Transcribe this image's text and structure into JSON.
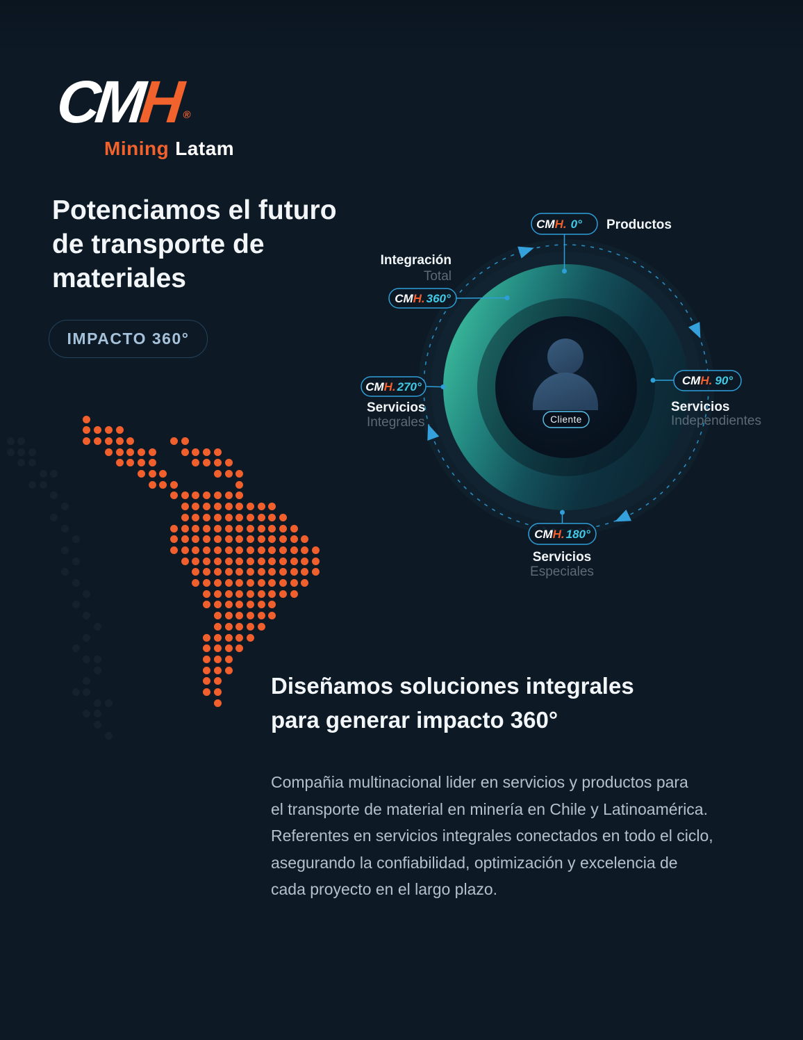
{
  "page": {
    "background": "#0d1925",
    "accent_orange": "#f15f2d",
    "accent_blue": "#2e9fd9",
    "accent_cyan": "#41c9e6",
    "accent_teal": "#2fae92"
  },
  "logo": {
    "wordmark_cm": "CM",
    "wordmark_h": "H",
    "registered": "®",
    "tagline_mining": "Mining",
    "tagline_latam": "Latam"
  },
  "hero": {
    "title": "Potenciamos el futuro\nde transporte de\nmateriales",
    "badge_label": "IMPACTO 360°"
  },
  "diagram": {
    "center": {
      "label": "Cliente"
    },
    "nodes": [
      {
        "brand_cm": "CM",
        "brand_h": "H.",
        "degree": "0°",
        "label": "Productos",
        "sublabel": ""
      },
      {
        "brand_cm": "CM",
        "brand_h": "H.",
        "degree": "90°",
        "label": "Servicios",
        "sublabel": "Independientes"
      },
      {
        "brand_cm": "CM",
        "brand_h": "H.",
        "degree": "180°",
        "label": "Servicios",
        "sublabel": "Especiales"
      },
      {
        "brand_cm": "CM",
        "brand_h": "H.",
        "degree": "270°",
        "label": "Servicios",
        "sublabel": "Integrales"
      },
      {
        "brand_cm": "CM",
        "brand_h": "H.",
        "degree": "360°",
        "label": "Integración",
        "sublabel": "Total"
      }
    ]
  },
  "map": {
    "region": "Latinoamérica",
    "dot_color": "#f15f2d",
    "faint_color": "#15222e",
    "grid": [
      ".......o......................",
      ".......oooo...................",
      "ff.....ooooo...oo.............",
      "fff......ooooo..oooo..........",
      ".ff.......oooo...oooo.........",
      "...ff.......ooo....ooo........",
      "..ff.........ooo.....o........",
      "....f..........ooooooo........",
      ".....f..........ooooooooo.....",
      "....f...........oooooooooo....",
      ".....f.........oooooooooooo...",
      "......f........ooooooooooooo..",
      ".....f.........oooooooooooooo.",
      "......f.........ooooooooooooo.",
      ".....f...........oooooooooooo.",
      "......f..........ooooooooooo..",
      ".......f..........ooooooooo...",
      "......f...........ooooooo.....",
      ".......f...........oooooo.....",
      "........f..........ooooo......",
      ".......f..........ooooo.......",
      "......f...........oooo........",
      ".......ff.........ooo.........",
      "........f.........ooo.........",
      ".......f..........oo..........",
      "......ff..........oo..........",
      "........ff.........o..........",
      ".......ff.....................",
      "........f.....................",
      ".........f...................."
    ]
  },
  "solutions": {
    "title": "Diseñamos soluciones integrales\npara generar impacto 360°",
    "body": "Compañia multinacional lider en servicios y productos para\nel transporte de material en minería en Chile y Latinoamérica.\nReferentes en servicios integrales conectados en todo el ciclo,\nasegurando la confiabilidad, optimización y excelencia de\ncada proyecto en el largo plazo."
  }
}
